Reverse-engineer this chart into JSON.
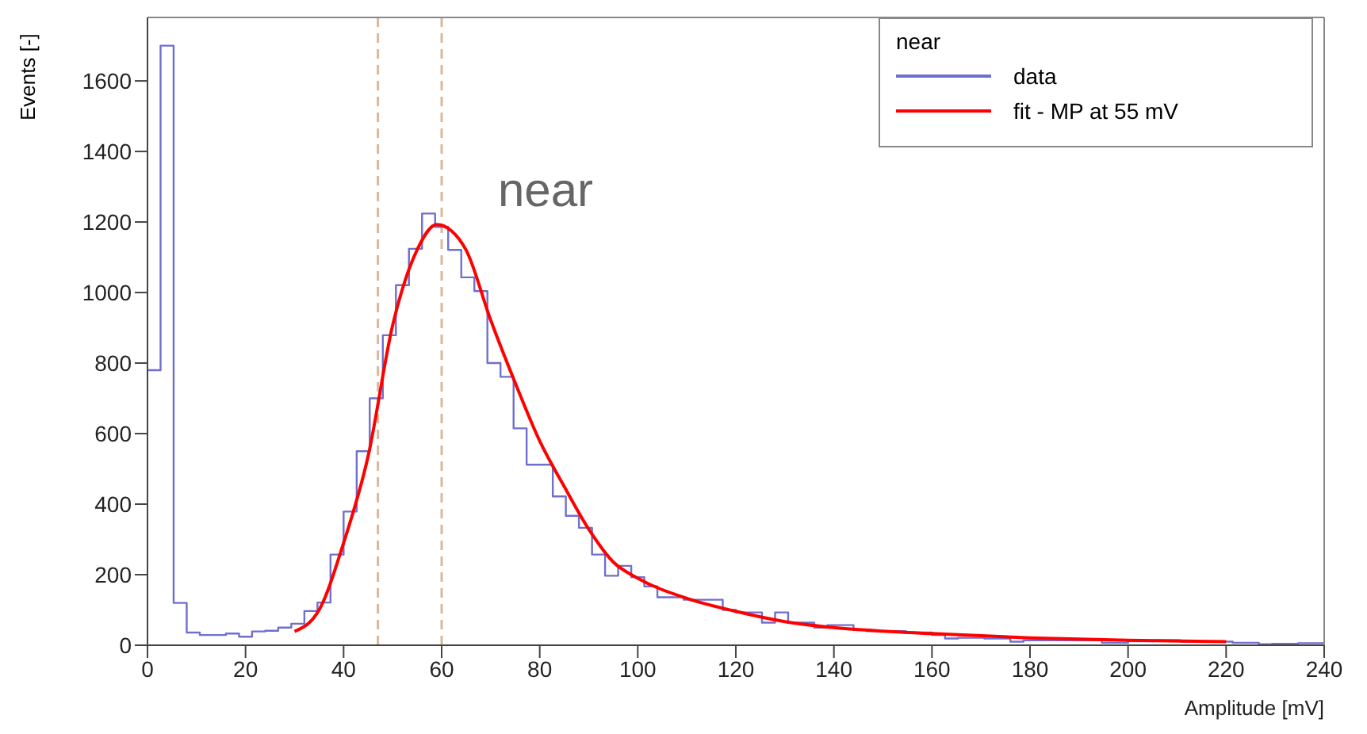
{
  "chart_data": {
    "type": "histogram",
    "xlabel": "Amplitude [mV]",
    "ylabel": "Events [-]",
    "legend_title": "near",
    "annotations": [
      "near"
    ],
    "bins": [
      0,
      2.67,
      5.33,
      8,
      10.67,
      13.33,
      16,
      18.67,
      21.33,
      24,
      26.67,
      29.33,
      32,
      34.67,
      37.33,
      40,
      42.67,
      45.33,
      48,
      50.67,
      53.33,
      56,
      58.67,
      61.33,
      64,
      66.67,
      69.33,
      72,
      74.67,
      77.33,
      80,
      82.67,
      85.33,
      88,
      90.67,
      93.33,
      96,
      98.67,
      101.33,
      104,
      106.67,
      109.33,
      112,
      114.67,
      117.33,
      120,
      122.67,
      125.33,
      128,
      130.67,
      133.33,
      136,
      138.67,
      141.33,
      144,
      146.67,
      149.33,
      152,
      154.67,
      157.33,
      160,
      162.67,
      165.33,
      168,
      170.67,
      173.33,
      176,
      178.67,
      181.33,
      184,
      186.67,
      189.33,
      192,
      194.67,
      197.33,
      200,
      202.67,
      205.33,
      208,
      210.67,
      213.33,
      216,
      218.67,
      221.33,
      224,
      226.67,
      229.33,
      232,
      234.67,
      237.33,
      240
    ],
    "series": [
      {
        "name": "data",
        "color": "#6f6fcf",
        "values": [
          780,
          1700,
          120,
          36,
          29,
          29,
          33,
          24,
          39,
          41,
          50,
          61,
          97,
          121,
          257,
          379,
          550,
          700,
          879,
          1021,
          1124,
          1224,
          1186,
          1121,
          1043,
          1004,
          800,
          761,
          615,
          512,
          512,
          422,
          367,
          333,
          257,
          197,
          225,
          193,
          167,
          136,
          136,
          129,
          129,
          129,
          100,
          93,
          93,
          64,
          93,
          64,
          64,
          50,
          57,
          57,
          43,
          40,
          40,
          40,
          36,
          36,
          29,
          19,
          21,
          21,
          19,
          19,
          10,
          14,
          14,
          14,
          14,
          14,
          14,
          7,
          7,
          11,
          11,
          14,
          14,
          10,
          10,
          10,
          10,
          7,
          7,
          3,
          4,
          4,
          6,
          6
        ]
      },
      {
        "name": "fit - MP at 55 mV",
        "type": "line",
        "color": "#ff0000",
        "x": [
          30,
          35,
          40,
          45,
          50,
          55,
          59,
          62,
          65,
          70,
          75,
          80,
          85,
          90,
          95,
          100,
          110,
          120,
          130,
          140,
          150,
          160,
          180,
          200,
          220
        ],
        "values": [
          39,
          100,
          290,
          536,
          907,
          1121,
          1193,
          1175,
          1120,
          922,
          744,
          579,
          450,
          329,
          236,
          190,
          133,
          96,
          67,
          50,
          40,
          33,
          21,
          14,
          10
        ]
      }
    ],
    "xlim": [
      0,
      240
    ],
    "xticks": [
      0,
      20,
      40,
      60,
      80,
      100,
      120,
      140,
      160,
      180,
      200,
      220,
      240
    ],
    "ylim": [
      0,
      1780
    ],
    "yticks": [
      0,
      200,
      400,
      600,
      800,
      1000,
      1200,
      1400,
      1600
    ],
    "ref_lines": [
      {
        "axis": "x",
        "value": 47,
        "color": "#d9b99b",
        "line_style": "dashed"
      },
      {
        "axis": "x",
        "value": 60,
        "color": "#d9b99b",
        "line_style": "dashed"
      }
    ],
    "legend": "top right",
    "grid": false
  }
}
